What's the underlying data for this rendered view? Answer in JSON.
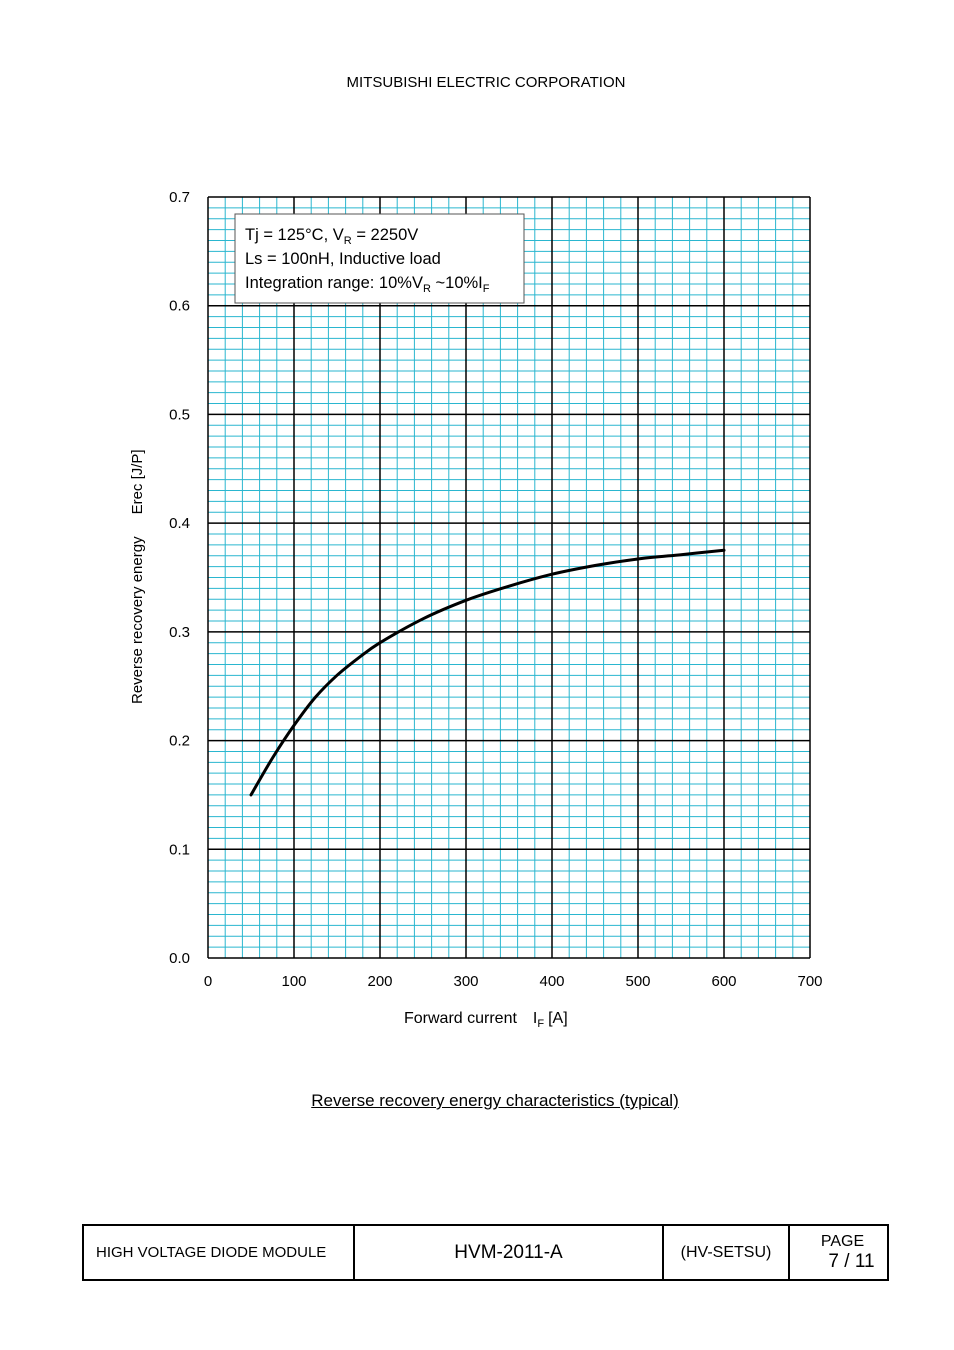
{
  "header": {
    "company": "MITSUBISHI ELECTRIC CORPORATION"
  },
  "chart_data": {
    "type": "line",
    "title": "",
    "xlabel_main": "Forward current",
    "xlabel_symbol": "I",
    "xlabel_sub": "F",
    "xlabel_unit": "[A]",
    "ylabel_main": "Reverse recovery energy",
    "ylabel_symbol": "Erec [J/P]",
    "xlim": [
      0,
      700
    ],
    "ylim": [
      0,
      0.7
    ],
    "x_ticks": [
      "0",
      "100",
      "200",
      "300",
      "400",
      "500",
      "600",
      "700"
    ],
    "y_ticks": [
      "0.0",
      "0.1",
      "0.2",
      "0.3",
      "0.4",
      "0.5",
      "0.6",
      "0.7"
    ],
    "grid": true,
    "legend": {
      "position": "top-left",
      "line1": {
        "prefix": "Tj = 125°C, V",
        "sub": "R",
        "suffix": " = 2250V"
      },
      "line2": {
        "text": "Ls = 100nH, Inductive load"
      },
      "line3": {
        "prefix": "Integration range: 10%V",
        "sub1": "R",
        "middle": " ~10%I",
        "sub2": "F"
      }
    },
    "series": [
      {
        "x": [
          50,
          75,
          100,
          125,
          150,
          175,
          200,
          250,
          300,
          350,
          400,
          450,
          500,
          550,
          600
        ],
        "y": [
          0.15,
          0.184,
          0.214,
          0.24,
          0.26,
          0.276,
          0.29,
          0.312,
          0.329,
          0.342,
          0.353,
          0.361,
          0.367,
          0.371,
          0.375
        ]
      }
    ],
    "colors": {
      "minor_grid": "#2ab6cf",
      "major_grid": "#000000",
      "line": "#000000"
    }
  },
  "caption": "Reverse recovery energy characteristics (typical)",
  "footer": {
    "product": "HIGH VOLTAGE DIODE MODULE",
    "doc_number": "HVM-2011-A",
    "doc_type": "(HV-SETSU)",
    "page_label": "PAGE",
    "page_number": "7 / 11"
  }
}
